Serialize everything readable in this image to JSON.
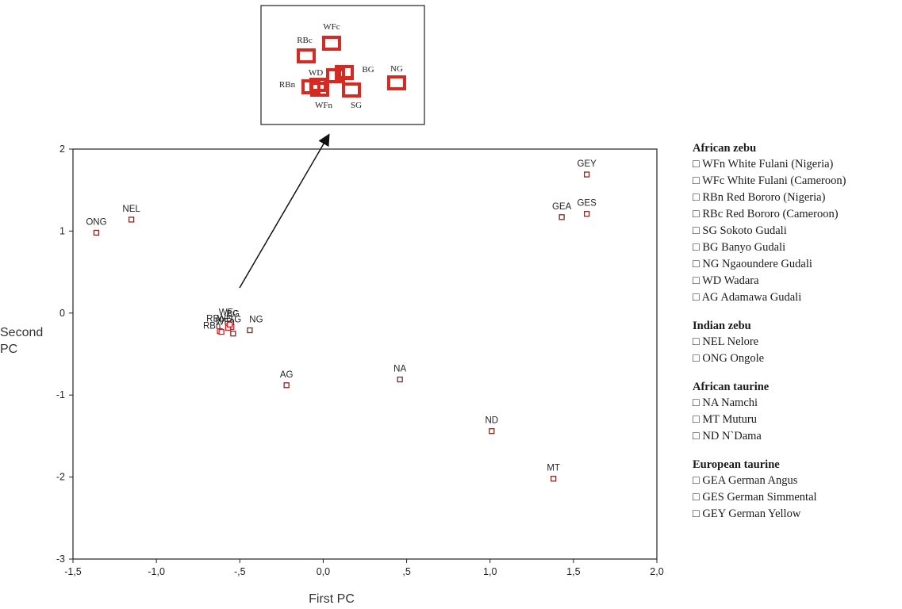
{
  "chart_data": {
    "type": "scatter",
    "xlabel": "First PC",
    "ylabel_lines": [
      "Second",
      "PC"
    ],
    "xlim": [
      -1.5,
      2.0
    ],
    "ylim": [
      -3,
      2
    ],
    "x_ticks": [
      {
        "v": -1.5,
        "label": "-1,5"
      },
      {
        "v": -1.0,
        "label": "-1,0"
      },
      {
        "v": -0.5,
        "label": "-,5"
      },
      {
        "v": 0.0,
        "label": "0,0"
      },
      {
        "v": 0.5,
        "label": ",5"
      },
      {
        "v": 1.0,
        "label": "1,0"
      },
      {
        "v": 1.5,
        "label": "1,5"
      },
      {
        "v": 2.0,
        "label": "2,0"
      }
    ],
    "y_ticks": [
      {
        "v": 2,
        "label": "2"
      },
      {
        "v": 1,
        "label": "1"
      },
      {
        "v": 0,
        "label": "0"
      },
      {
        "v": -1,
        "label": "-1"
      },
      {
        "v": -2,
        "label": "-2"
      },
      {
        "v": -3,
        "label": "-3"
      }
    ],
    "grid": false,
    "points": [
      {
        "label": "ONG",
        "x": -1.36,
        "y": 0.98,
        "color": "#7a2a22"
      },
      {
        "label": "NEL",
        "x": -1.15,
        "y": 1.14,
        "color": "#7a2a22"
      },
      {
        "label": "GEY",
        "x": 1.58,
        "y": 1.69,
        "color": "#7a2a22"
      },
      {
        "label": "GEA",
        "x": 1.43,
        "y": 1.17,
        "color": "#7a2a22"
      },
      {
        "label": "GES",
        "x": 1.58,
        "y": 1.21,
        "color": "#7a2a22"
      },
      {
        "label": "AG",
        "x": -0.22,
        "y": -0.88,
        "color": "#7a2a22"
      },
      {
        "label": "NA",
        "x": 0.46,
        "y": -0.81,
        "color": "#7a2a22"
      },
      {
        "label": "ND",
        "x": 1.01,
        "y": -1.44,
        "color": "#7a2a22"
      },
      {
        "label": "MT",
        "x": 1.38,
        "y": -2.02,
        "color": "#7a2a22"
      },
      {
        "label": "NG",
        "x": -0.44,
        "y": -0.21,
        "color": "#7a2a22"
      },
      {
        "label": "SG",
        "x": -0.54,
        "y": -0.25,
        "color": "#7a2a22"
      },
      {
        "label": "RBc",
        "x": -0.62,
        "y": -0.22,
        "color": "#cc2222"
      },
      {
        "label": "RBn",
        "x": -0.61,
        "y": -0.23,
        "color": "#cc2222"
      },
      {
        "label": "WFn",
        "x": -0.55,
        "y": -0.17,
        "color": "#cc2222"
      },
      {
        "label": "WFc",
        "x": -0.57,
        "y": -0.16,
        "color": "#cc2222"
      },
      {
        "label": "WD",
        "x": -0.57,
        "y": -0.18,
        "color": "#cc2222"
      },
      {
        "label": "BG",
        "x": -0.56,
        "y": -0.14,
        "color": "#cc2222"
      }
    ],
    "inset": {
      "points": [
        {
          "label": "WFc"
        },
        {
          "label": "RBc"
        },
        {
          "label": "BG"
        },
        {
          "label": "NG"
        },
        {
          "label": "WD"
        },
        {
          "label": "RBn"
        },
        {
          "label": "WFn"
        },
        {
          "label": "SG"
        }
      ]
    }
  },
  "legend": {
    "groups": [
      {
        "title": "African zebu",
        "items": [
          "□ WFn  White Fulani (Nigeria)",
          "□ WFc  White Fulani (Cameroon)",
          "□ RBn  Red Bororo (Nigeria)",
          "□ RBc  Red Bororo (Cameroon)",
          "□ SG  Sokoto Gudali",
          "□ BG  Banyo Gudali",
          "□ NG  Ngaoundere Gudali",
          "□ WD  Wadara",
          "□ AG  Adamawa Gudali"
        ]
      },
      {
        "title": "Indian zebu",
        "items": [
          "□ NEL  Nelore",
          "□ ONG Ongole"
        ]
      },
      {
        "title": "African taurine",
        "items": [
          "□ NA  Namchi",
          "□ MT  Muturu",
          "□ ND  N`Dama"
        ]
      },
      {
        "title": "European taurine",
        "items": [
          "□ GEA  German Angus",
          "□ GES  German Simmental",
          "□ GEY  German Yellow"
        ]
      }
    ]
  }
}
